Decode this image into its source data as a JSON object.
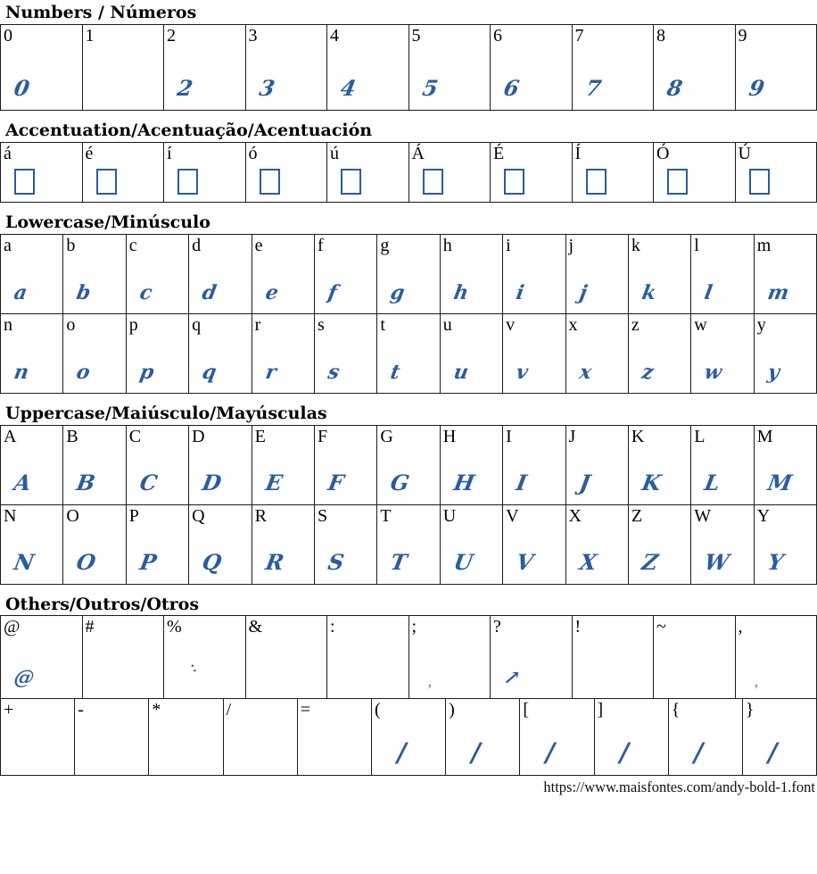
{
  "colors": {
    "glyph_blue": "#2a5ca0",
    "light_glyph_blue": "#7795c2",
    "table_border": "#1c1c1c",
    "text": "#000000",
    "background": "#ffffff"
  },
  "sections": [
    {
      "heading": "Numbers / Números",
      "rows": [
        [
          {
            "label": "0",
            "glyph": "0",
            "style": "brush"
          },
          {
            "label": "1",
            "glyph": "",
            "style": "none"
          },
          {
            "label": "2",
            "glyph": "2",
            "style": "brush"
          },
          {
            "label": "3",
            "glyph": "3",
            "style": "brush"
          },
          {
            "label": "4",
            "glyph": "4",
            "style": "brush"
          },
          {
            "label": "5",
            "glyph": "5",
            "style": "brush"
          },
          {
            "label": "6",
            "glyph": "6",
            "style": "brush"
          },
          {
            "label": "7",
            "glyph": "7",
            "style": "brush"
          },
          {
            "label": "8",
            "glyph": "8",
            "style": "brush"
          },
          {
            "label": "9",
            "glyph": "9",
            "style": "brush"
          }
        ]
      ]
    },
    {
      "heading": "Accentuation/Acentuação/Acentuación",
      "rows": [
        [
          {
            "label": "á",
            "glyph": "",
            "style": "box"
          },
          {
            "label": "é",
            "glyph": "",
            "style": "box"
          },
          {
            "label": "í",
            "glyph": "",
            "style": "box"
          },
          {
            "label": "ó",
            "glyph": "",
            "style": "box"
          },
          {
            "label": "ú",
            "glyph": "",
            "style": "box"
          },
          {
            "label": "Á",
            "glyph": "",
            "style": "box"
          },
          {
            "label": "É",
            "glyph": "",
            "style": "box"
          },
          {
            "label": "Í",
            "glyph": "",
            "style": "box"
          },
          {
            "label": "Ó",
            "glyph": "",
            "style": "box"
          },
          {
            "label": "Ú",
            "glyph": "",
            "style": "box"
          }
        ]
      ]
    },
    {
      "heading": "Lowercase/Minúsculo",
      "rows": [
        [
          {
            "label": "a",
            "glyph": "a",
            "style": "brush"
          },
          {
            "label": "b",
            "glyph": "b",
            "style": "brush"
          },
          {
            "label": "c",
            "glyph": "c",
            "style": "brush"
          },
          {
            "label": "d",
            "glyph": "d",
            "style": "brush"
          },
          {
            "label": "e",
            "glyph": "e",
            "style": "brush"
          },
          {
            "label": "f",
            "glyph": "f",
            "style": "brush"
          },
          {
            "label": "g",
            "glyph": "g",
            "style": "brush"
          },
          {
            "label": "h",
            "glyph": "h",
            "style": "brush"
          },
          {
            "label": "i",
            "glyph": "i",
            "style": "brush"
          },
          {
            "label": "j",
            "glyph": "j",
            "style": "brush"
          },
          {
            "label": "k",
            "glyph": "k",
            "style": "brush"
          },
          {
            "label": "l",
            "glyph": "l",
            "style": "brush"
          },
          {
            "label": "m",
            "glyph": "m",
            "style": "brush"
          }
        ],
        [
          {
            "label": "n",
            "glyph": "n",
            "style": "brush"
          },
          {
            "label": "o",
            "glyph": "o",
            "style": "brush"
          },
          {
            "label": "p",
            "glyph": "p",
            "style": "brush"
          },
          {
            "label": "q",
            "glyph": "q",
            "style": "brush"
          },
          {
            "label": "r",
            "glyph": "r",
            "style": "brush"
          },
          {
            "label": "s",
            "glyph": "s",
            "style": "brush"
          },
          {
            "label": "t",
            "glyph": "t",
            "style": "brush"
          },
          {
            "label": "u",
            "glyph": "u",
            "style": "brush"
          },
          {
            "label": "v",
            "glyph": "v",
            "style": "brush"
          },
          {
            "label": "x",
            "glyph": "x",
            "style": "brush"
          },
          {
            "label": "z",
            "glyph": "z",
            "style": "brush"
          },
          {
            "label": "w",
            "glyph": "w",
            "style": "brush"
          },
          {
            "label": "y",
            "glyph": "y",
            "style": "brush"
          }
        ]
      ]
    },
    {
      "heading": "Uppercase/Maiúsculo/Mayúsculas",
      "rows": [
        [
          {
            "label": "A",
            "glyph": "A",
            "style": "brush"
          },
          {
            "label": "B",
            "glyph": "B",
            "style": "brush"
          },
          {
            "label": "C",
            "glyph": "C",
            "style": "brush"
          },
          {
            "label": "D",
            "glyph": "D",
            "style": "brush"
          },
          {
            "label": "E",
            "glyph": "E",
            "style": "brush"
          },
          {
            "label": "F",
            "glyph": "F",
            "style": "brush"
          },
          {
            "label": "G",
            "glyph": "G",
            "style": "brush"
          },
          {
            "label": "H",
            "glyph": "H",
            "style": "brush"
          },
          {
            "label": "I",
            "glyph": "I",
            "style": "brush"
          },
          {
            "label": "J",
            "glyph": "J",
            "style": "brush"
          },
          {
            "label": "K",
            "glyph": "K",
            "style": "brush"
          },
          {
            "label": "L",
            "glyph": "L",
            "style": "brush"
          },
          {
            "label": "M",
            "glyph": "M",
            "style": "brush"
          }
        ],
        [
          {
            "label": "N",
            "glyph": "N",
            "style": "brush"
          },
          {
            "label": "O",
            "glyph": "O",
            "style": "brush"
          },
          {
            "label": "P",
            "glyph": "P",
            "style": "brush"
          },
          {
            "label": "Q",
            "glyph": "Q",
            "style": "brush"
          },
          {
            "label": "R",
            "glyph": "R",
            "style": "brush"
          },
          {
            "label": "S",
            "glyph": "S",
            "style": "brush"
          },
          {
            "label": "T",
            "glyph": "T",
            "style": "brush"
          },
          {
            "label": "U",
            "glyph": "U",
            "style": "brush"
          },
          {
            "label": "V",
            "glyph": "V",
            "style": "brush"
          },
          {
            "label": "X",
            "glyph": "X",
            "style": "brush"
          },
          {
            "label": "Z",
            "glyph": "Z",
            "style": "brush"
          },
          {
            "label": "W",
            "glyph": "W",
            "style": "brush"
          },
          {
            "label": "Y",
            "glyph": "Y",
            "style": "brush"
          }
        ]
      ]
    },
    {
      "heading": "Others/Outros/Otros",
      "rows": [
        [
          {
            "label": "@",
            "glyph": "@",
            "style": "brush"
          },
          {
            "label": "#",
            "glyph": "",
            "style": "none"
          },
          {
            "label": "%",
            "glyph": "··",
            "style": "dots"
          },
          {
            "label": "&",
            "glyph": "",
            "style": "none"
          },
          {
            "label": ":",
            "glyph": "",
            "style": "none"
          },
          {
            "label": ";",
            "glyph": ",",
            "style": "small"
          },
          {
            "label": "?",
            "glyph": "↗",
            "style": "brush"
          },
          {
            "label": "!",
            "glyph": "",
            "style": "none"
          },
          {
            "label": "~",
            "glyph": "",
            "style": "none"
          },
          {
            "label": ",",
            "glyph": ",",
            "style": "small"
          }
        ],
        [
          {
            "label": "+",
            "glyph": "",
            "style": "none"
          },
          {
            "label": "-",
            "glyph": "",
            "style": "none"
          },
          {
            "label": "*",
            "glyph": "",
            "style": "none"
          },
          {
            "label": "/",
            "glyph": "",
            "style": "none"
          },
          {
            "label": "=",
            "glyph": "",
            "style": "none"
          },
          {
            "label": "(",
            "glyph": "/",
            "style": "stroke"
          },
          {
            "label": ")",
            "glyph": "/",
            "style": "stroke"
          },
          {
            "label": "[",
            "glyph": "/",
            "style": "stroke"
          },
          {
            "label": "]",
            "glyph": "/",
            "style": "stroke"
          },
          {
            "label": "{",
            "glyph": "/",
            "style": "stroke"
          },
          {
            "label": "}",
            "glyph": "/",
            "style": "stroke"
          }
        ]
      ]
    }
  ],
  "footer": {
    "url": "https://www.maisfontes.com/andy-bold-1.font"
  }
}
